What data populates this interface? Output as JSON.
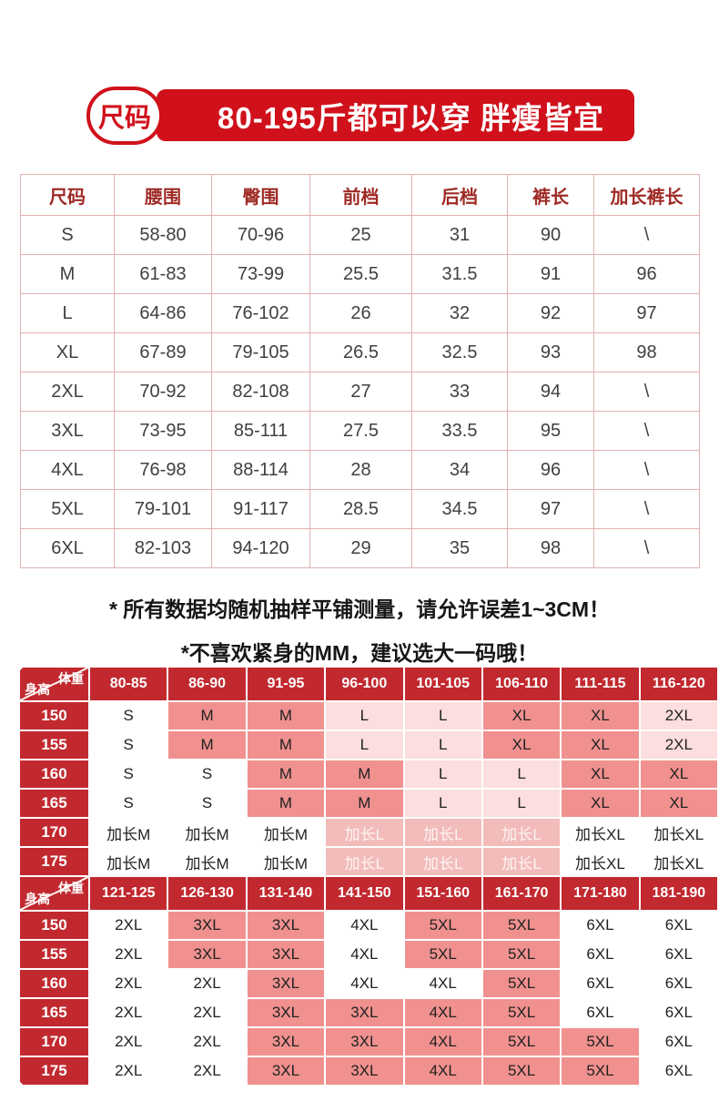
{
  "colors": {
    "banner_red": "#d0111b",
    "matrix_header_red": "#c1292f",
    "cell_salmon": "#f0918f",
    "cell_light_pink": "#fbdedd",
    "cell_faded_pink": "#f2bcba",
    "faded_cell_text": "#fdf4f3",
    "table_border": "#e3b1b0",
    "table_header_text": "#9e2a25",
    "table_body_text": "#404040"
  },
  "banner": {
    "capsule_label": "尺码",
    "title": "80-195斤都可以穿 胖瘦皆宜"
  },
  "size_table": {
    "headers": [
      "尺码",
      "腰围",
      "臀围",
      "前档",
      "后档",
      "裤长",
      "加长裤长"
    ],
    "rows": [
      [
        "S",
        "58-80",
        "70-96",
        "25",
        "31",
        "90",
        "\\"
      ],
      [
        "M",
        "61-83",
        "73-99",
        "25.5",
        "31.5",
        "91",
        "96"
      ],
      [
        "L",
        "64-86",
        "76-102",
        "26",
        "32",
        "92",
        "97"
      ],
      [
        "XL",
        "67-89",
        "79-105",
        "26.5",
        "32.5",
        "93",
        "98"
      ],
      [
        "2XL",
        "70-92",
        "82-108",
        "27",
        "33",
        "94",
        "\\"
      ],
      [
        "3XL",
        "73-95",
        "85-111",
        "27.5",
        "33.5",
        "95",
        "\\"
      ],
      [
        "4XL",
        "76-98",
        "88-114",
        "28",
        "34",
        "96",
        "\\"
      ],
      [
        "5XL",
        "79-101",
        "91-117",
        "28.5",
        "34.5",
        "97",
        "\\"
      ],
      [
        "6XL",
        "82-103",
        "94-120",
        "29",
        "35",
        "98",
        "\\"
      ]
    ]
  },
  "notes": [
    "* 所有数据均随机抽样平铺测量，请允许误差1~3CM！",
    "*不喜欢紧身的MM，建议选大一码哦！"
  ],
  "recommendation_tables": [
    {
      "corner_top": "体重",
      "corner_bottom": "身高",
      "weight_headers": [
        "80-85",
        "86-90",
        "91-95",
        "96-100",
        "101-105",
        "106-110",
        "111-115",
        "116-120"
      ],
      "rows": [
        {
          "height": "150",
          "cells": [
            {
              "size": "S",
              "tone": "w"
            },
            {
              "size": "M",
              "tone": "p2"
            },
            {
              "size": "M",
              "tone": "p2"
            },
            {
              "size": "L",
              "tone": "p1"
            },
            {
              "size": "L",
              "tone": "p1"
            },
            {
              "size": "XL",
              "tone": "p2"
            },
            {
              "size": "XL",
              "tone": "p2"
            },
            {
              "size": "2XL",
              "tone": "p1"
            }
          ]
        },
        {
          "height": "155",
          "cells": [
            {
              "size": "S",
              "tone": "w"
            },
            {
              "size": "M",
              "tone": "p2"
            },
            {
              "size": "M",
              "tone": "p2"
            },
            {
              "size": "L",
              "tone": "p1"
            },
            {
              "size": "L",
              "tone": "p1"
            },
            {
              "size": "XL",
              "tone": "p2"
            },
            {
              "size": "XL",
              "tone": "p2"
            },
            {
              "size": "2XL",
              "tone": "p1"
            }
          ]
        },
        {
          "height": "160",
          "cells": [
            {
              "size": "S",
              "tone": "w"
            },
            {
              "size": "S",
              "tone": "w"
            },
            {
              "size": "M",
              "tone": "p2"
            },
            {
              "size": "M",
              "tone": "p2"
            },
            {
              "size": "L",
              "tone": "p1"
            },
            {
              "size": "L",
              "tone": "p1"
            },
            {
              "size": "XL",
              "tone": "p2"
            },
            {
              "size": "XL",
              "tone": "p2"
            }
          ]
        },
        {
          "height": "165",
          "cells": [
            {
              "size": "S",
              "tone": "w"
            },
            {
              "size": "S",
              "tone": "w"
            },
            {
              "size": "M",
              "tone": "p2"
            },
            {
              "size": "M",
              "tone": "p2"
            },
            {
              "size": "L",
              "tone": "p1"
            },
            {
              "size": "L",
              "tone": "p1"
            },
            {
              "size": "XL",
              "tone": "p2"
            },
            {
              "size": "XL",
              "tone": "p2"
            }
          ]
        },
        {
          "height": "170",
          "cells": [
            {
              "size": "加长M",
              "tone": "w"
            },
            {
              "size": "加长M",
              "tone": "w"
            },
            {
              "size": "加长M",
              "tone": "w"
            },
            {
              "size": "加长L",
              "tone": "p3"
            },
            {
              "size": "加长L",
              "tone": "p3"
            },
            {
              "size": "加长L",
              "tone": "p3"
            },
            {
              "size": "加长XL",
              "tone": "w"
            },
            {
              "size": "加长XL",
              "tone": "w"
            }
          ]
        },
        {
          "height": "175",
          "cells": [
            {
              "size": "加长M",
              "tone": "w"
            },
            {
              "size": "加长M",
              "tone": "w"
            },
            {
              "size": "加长M",
              "tone": "w"
            },
            {
              "size": "加长L",
              "tone": "p3"
            },
            {
              "size": "加长L",
              "tone": "p3"
            },
            {
              "size": "加长L",
              "tone": "p3"
            },
            {
              "size": "加长XL",
              "tone": "w"
            },
            {
              "size": "加长XL",
              "tone": "w"
            }
          ]
        }
      ]
    },
    {
      "corner_top": "体重",
      "corner_bottom": "身高",
      "weight_headers": [
        "121-125",
        "126-130",
        "131-140",
        "141-150",
        "151-160",
        "161-170",
        "171-180",
        "181-190"
      ],
      "rows": [
        {
          "height": "150",
          "cells": [
            {
              "size": "2XL",
              "tone": "w"
            },
            {
              "size": "3XL",
              "tone": "p2"
            },
            {
              "size": "3XL",
              "tone": "p2"
            },
            {
              "size": "4XL",
              "tone": "w"
            },
            {
              "size": "5XL",
              "tone": "p2"
            },
            {
              "size": "5XL",
              "tone": "p2"
            },
            {
              "size": "6XL",
              "tone": "w"
            },
            {
              "size": "6XL",
              "tone": "w"
            }
          ]
        },
        {
          "height": "155",
          "cells": [
            {
              "size": "2XL",
              "tone": "w"
            },
            {
              "size": "3XL",
              "tone": "p2"
            },
            {
              "size": "3XL",
              "tone": "p2"
            },
            {
              "size": "4XL",
              "tone": "w"
            },
            {
              "size": "5XL",
              "tone": "p2"
            },
            {
              "size": "5XL",
              "tone": "p2"
            },
            {
              "size": "6XL",
              "tone": "w"
            },
            {
              "size": "6XL",
              "tone": "w"
            }
          ]
        },
        {
          "height": "160",
          "cells": [
            {
              "size": "2XL",
              "tone": "w"
            },
            {
              "size": "2XL",
              "tone": "w"
            },
            {
              "size": "3XL",
              "tone": "p2"
            },
            {
              "size": "4XL",
              "tone": "w"
            },
            {
              "size": "4XL",
              "tone": "w"
            },
            {
              "size": "5XL",
              "tone": "p2"
            },
            {
              "size": "6XL",
              "tone": "w"
            },
            {
              "size": "6XL",
              "tone": "w"
            }
          ]
        },
        {
          "height": "165",
          "cells": [
            {
              "size": "2XL",
              "tone": "w"
            },
            {
              "size": "2XL",
              "tone": "w"
            },
            {
              "size": "3XL",
              "tone": "p2"
            },
            {
              "size": "3XL",
              "tone": "p2"
            },
            {
              "size": "4XL",
              "tone": "p2"
            },
            {
              "size": "5XL",
              "tone": "p2"
            },
            {
              "size": "6XL",
              "tone": "w"
            },
            {
              "size": "6XL",
              "tone": "w"
            }
          ]
        },
        {
          "height": "170",
          "cells": [
            {
              "size": "2XL",
              "tone": "w"
            },
            {
              "size": "2XL",
              "tone": "w"
            },
            {
              "size": "3XL",
              "tone": "p2"
            },
            {
              "size": "3XL",
              "tone": "p2"
            },
            {
              "size": "4XL",
              "tone": "p2"
            },
            {
              "size": "5XL",
              "tone": "p2"
            },
            {
              "size": "5XL",
              "tone": "p2"
            },
            {
              "size": "6XL",
              "tone": "w"
            }
          ]
        },
        {
          "height": "175",
          "cells": [
            {
              "size": "2XL",
              "tone": "w"
            },
            {
              "size": "2XL",
              "tone": "w"
            },
            {
              "size": "3XL",
              "tone": "p2"
            },
            {
              "size": "3XL",
              "tone": "p2"
            },
            {
              "size": "4XL",
              "tone": "p2"
            },
            {
              "size": "5XL",
              "tone": "p2"
            },
            {
              "size": "5XL",
              "tone": "p2"
            },
            {
              "size": "6XL",
              "tone": "w"
            }
          ]
        }
      ]
    }
  ]
}
